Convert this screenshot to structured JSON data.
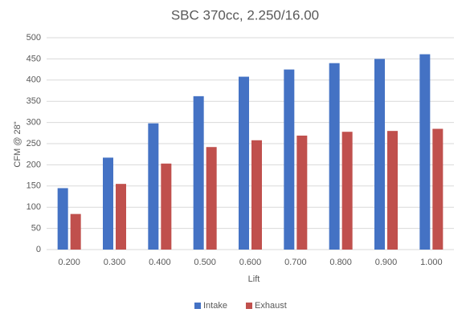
{
  "chart_data": {
    "type": "bar",
    "title": "SBC 370cc, 2.250/16.00",
    "x_label": "Lift",
    "y_label": "CFM @ 28\"",
    "categories": [
      "0.200",
      "0.300",
      "0.400",
      "0.500",
      "0.600",
      "0.700",
      "0.800",
      "0.900",
      "1.000"
    ],
    "series": [
      {
        "name": "Intake",
        "color": "#4472c4",
        "values": [
          145,
          217,
          298,
          362,
          408,
          425,
          440,
          450,
          461
        ]
      },
      {
        "name": "Exhaust",
        "color": "#c0504d",
        "values": [
          84,
          155,
          203,
          242,
          258,
          269,
          278,
          280,
          285
        ]
      }
    ],
    "ylim": [
      0,
      500
    ],
    "yticks": [
      0,
      50,
      100,
      150,
      200,
      250,
      300,
      350,
      400,
      450,
      500
    ],
    "grid": true,
    "legend": "bottom"
  }
}
